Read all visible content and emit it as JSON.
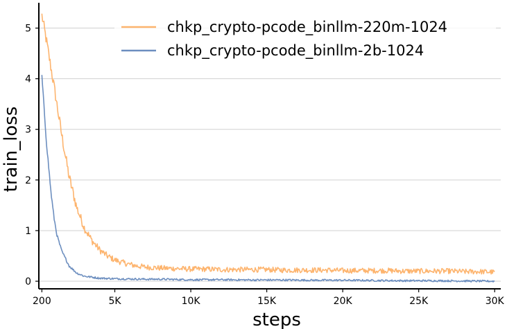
{
  "chart_data": {
    "type": "line",
    "xlabel": "steps",
    "ylabel": "train_loss",
    "xlim": [
      0,
      30400
    ],
    "ylim": [
      -0.15,
      5.5
    ],
    "x_ticks": [
      200,
      5000,
      10000,
      15000,
      20000,
      25000,
      30000
    ],
    "x_tick_labels": [
      "200",
      "5K",
      "10K",
      "15K",
      "20K",
      "25K",
      "30K"
    ],
    "y_ticks": [
      0,
      1,
      2,
      3,
      4,
      5
    ],
    "y_tick_labels": [
      "0",
      "1",
      "2",
      "3",
      "4",
      "5"
    ],
    "grid": "horizontal",
    "legend_position": "top-right",
    "series": [
      {
        "name": "chkp_crypto-pcode_binllm-220m-1024",
        "color": "#fdb46e",
        "x": [
          200,
          500,
          1000,
          1500,
          2000,
          2500,
          3000,
          3500,
          4000,
          4500,
          5000,
          5500,
          6000,
          6500,
          7000,
          8000,
          9000,
          10000,
          11000,
          12000,
          13000,
          14000,
          15000,
          16000,
          17000,
          18000,
          19000,
          20000,
          21000,
          22000,
          23000,
          24000,
          25000,
          26000,
          27000,
          28000,
          29000,
          30000
        ],
        "y": [
          5.25,
          4.75,
          3.85,
          2.9,
          2.05,
          1.45,
          1.05,
          0.8,
          0.62,
          0.5,
          0.42,
          0.37,
          0.33,
          0.3,
          0.28,
          0.26,
          0.25,
          0.24,
          0.24,
          0.23,
          0.23,
          0.23,
          0.23,
          0.22,
          0.22,
          0.22,
          0.22,
          0.21,
          0.21,
          0.21,
          0.21,
          0.2,
          0.2,
          0.2,
          0.2,
          0.19,
          0.19,
          0.18
        ]
      },
      {
        "name": "chkp_crypto-pcode_binllm-2b-1024",
        "color": "#6c8ebf",
        "x": [
          200,
          500,
          800,
          1000,
          1200,
          1500,
          2000,
          2500,
          3000,
          3500,
          4000,
          5000,
          6000,
          7000,
          8000,
          10000,
          12000,
          14000,
          16000,
          18000,
          20000,
          22000,
          24000,
          26000,
          28000,
          30000
        ],
        "y": [
          4.05,
          2.75,
          1.75,
          1.25,
          0.9,
          0.6,
          0.3,
          0.16,
          0.1,
          0.08,
          0.06,
          0.05,
          0.045,
          0.04,
          0.04,
          0.03,
          0.03,
          0.025,
          0.025,
          0.02,
          0.02,
          0.015,
          0.01,
          0.01,
          0.005,
          0.0
        ]
      }
    ]
  }
}
